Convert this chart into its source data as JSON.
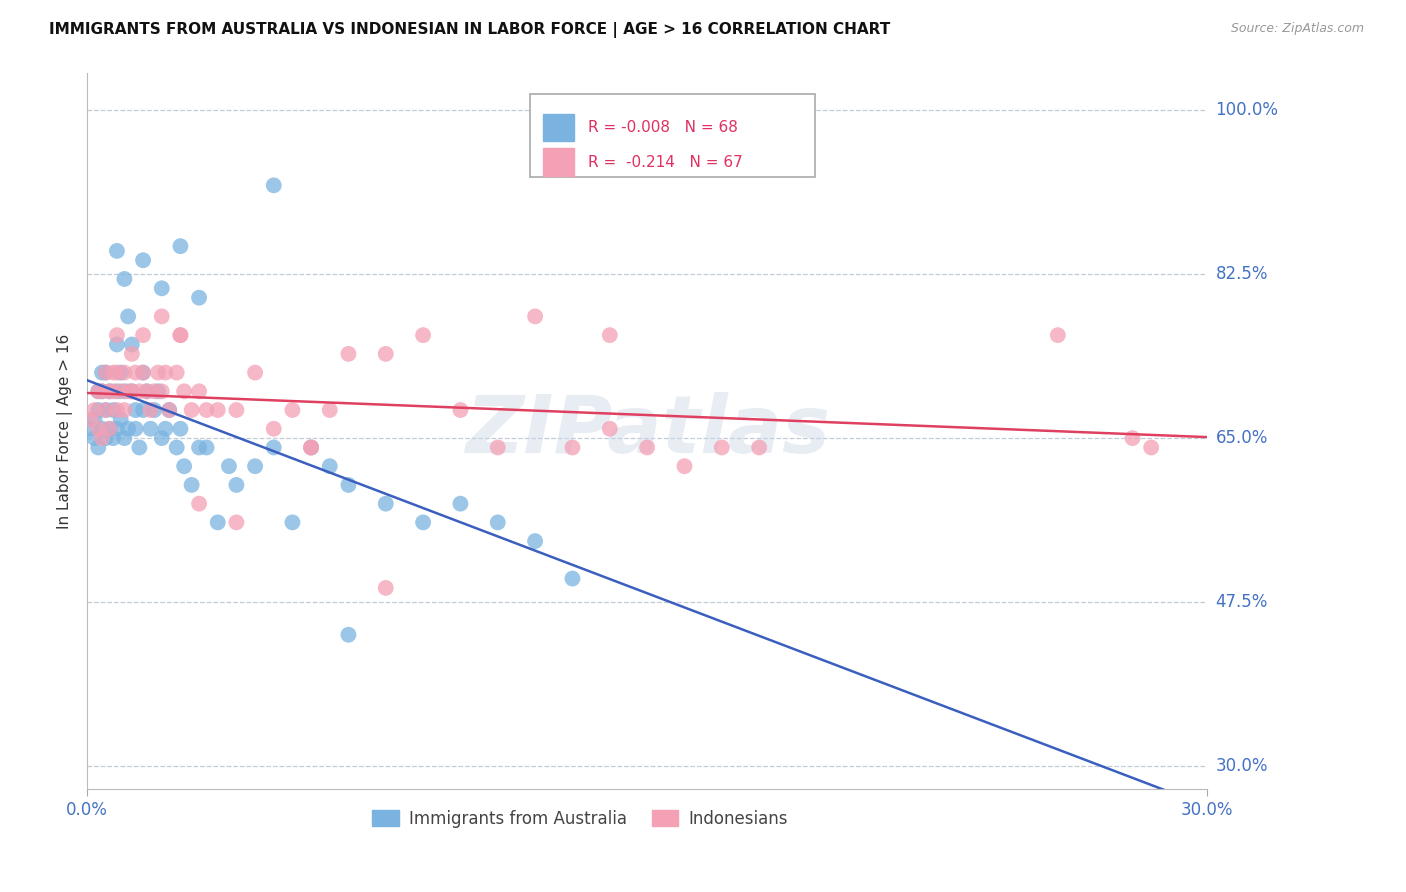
{
  "title": "IMMIGRANTS FROM AUSTRALIA VS INDONESIAN IN LABOR FORCE | AGE > 16 CORRELATION CHART",
  "source": "Source: ZipAtlas.com",
  "ylabel": "In Labor Force | Age > 16",
  "xlim": [
    0.0,
    0.3
  ],
  "ylim": [
    0.275,
    1.04
  ],
  "yticks": [
    0.3,
    0.475,
    0.65,
    0.825,
    1.0
  ],
  "ytick_labels": [
    "30.0%",
    "47.5%",
    "65.0%",
    "82.5%",
    "100.0%"
  ],
  "R_australia": -0.008,
  "N_australia": 68,
  "R_indonesia": -0.214,
  "N_indonesia": 67,
  "color_australia": "#7ab3e0",
  "color_indonesia": "#f4a0b5",
  "color_trend_australia": "#3a5fbf",
  "color_trend_indonesia": "#e04060",
  "watermark": "ZIPatlas",
  "aus_x": [
    0.001,
    0.002,
    0.002,
    0.003,
    0.003,
    0.003,
    0.004,
    0.004,
    0.004,
    0.005,
    0.005,
    0.005,
    0.006,
    0.006,
    0.007,
    0.007,
    0.008,
    0.008,
    0.008,
    0.009,
    0.009,
    0.01,
    0.01,
    0.011,
    0.011,
    0.012,
    0.012,
    0.013,
    0.013,
    0.014,
    0.015,
    0.015,
    0.016,
    0.017,
    0.018,
    0.019,
    0.02,
    0.021,
    0.022,
    0.024,
    0.025,
    0.026,
    0.028,
    0.03,
    0.032,
    0.035,
    0.038,
    0.04,
    0.045,
    0.05,
    0.055,
    0.06,
    0.065,
    0.07,
    0.08,
    0.09,
    0.1,
    0.11,
    0.12,
    0.13,
    0.05,
    0.025,
    0.015,
    0.008,
    0.01,
    0.02,
    0.03,
    0.07
  ],
  "aus_y": [
    0.66,
    0.65,
    0.67,
    0.68,
    0.64,
    0.7,
    0.66,
    0.7,
    0.72,
    0.68,
    0.65,
    0.72,
    0.66,
    0.7,
    0.68,
    0.65,
    0.66,
    0.7,
    0.75,
    0.67,
    0.72,
    0.65,
    0.7,
    0.66,
    0.78,
    0.75,
    0.7,
    0.68,
    0.66,
    0.64,
    0.72,
    0.68,
    0.7,
    0.66,
    0.68,
    0.7,
    0.65,
    0.66,
    0.68,
    0.64,
    0.66,
    0.62,
    0.6,
    0.64,
    0.64,
    0.56,
    0.62,
    0.6,
    0.62,
    0.64,
    0.56,
    0.64,
    0.62,
    0.6,
    0.58,
    0.56,
    0.58,
    0.56,
    0.54,
    0.5,
    0.92,
    0.855,
    0.84,
    0.85,
    0.82,
    0.81,
    0.8,
    0.44
  ],
  "ind_x": [
    0.001,
    0.002,
    0.003,
    0.003,
    0.004,
    0.004,
    0.005,
    0.005,
    0.006,
    0.006,
    0.007,
    0.007,
    0.008,
    0.008,
    0.009,
    0.01,
    0.01,
    0.011,
    0.012,
    0.013,
    0.014,
    0.015,
    0.016,
    0.017,
    0.018,
    0.019,
    0.02,
    0.021,
    0.022,
    0.024,
    0.025,
    0.026,
    0.028,
    0.03,
    0.032,
    0.035,
    0.04,
    0.045,
    0.05,
    0.055,
    0.06,
    0.065,
    0.07,
    0.08,
    0.09,
    0.1,
    0.11,
    0.12,
    0.13,
    0.14,
    0.15,
    0.16,
    0.17,
    0.18,
    0.26,
    0.28,
    0.285,
    0.008,
    0.012,
    0.015,
    0.02,
    0.025,
    0.03,
    0.04,
    0.06,
    0.08,
    0.14
  ],
  "ind_y": [
    0.67,
    0.68,
    0.66,
    0.7,
    0.65,
    0.7,
    0.68,
    0.72,
    0.7,
    0.66,
    0.7,
    0.72,
    0.68,
    0.72,
    0.7,
    0.68,
    0.72,
    0.7,
    0.7,
    0.72,
    0.7,
    0.72,
    0.7,
    0.68,
    0.7,
    0.72,
    0.7,
    0.72,
    0.68,
    0.72,
    0.76,
    0.7,
    0.68,
    0.7,
    0.68,
    0.68,
    0.68,
    0.72,
    0.66,
    0.68,
    0.64,
    0.68,
    0.74,
    0.74,
    0.76,
    0.68,
    0.64,
    0.78,
    0.64,
    0.76,
    0.64,
    0.62,
    0.64,
    0.64,
    0.76,
    0.65,
    0.64,
    0.76,
    0.74,
    0.76,
    0.78,
    0.76,
    0.58,
    0.56,
    0.64,
    0.49,
    0.66
  ]
}
